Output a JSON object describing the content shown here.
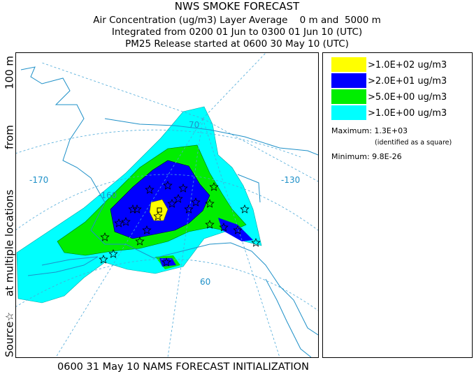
{
  "header": {
    "title": "NWS SMOKE FORECAST",
    "lines": [
      "Air Concentration (ug/m3) Layer Average    0 m and  5000 m",
      "Integrated from 0200 01 Jun to 0300 01 Jun 10 (UTC)",
      "PM25 Release started at 0600 30 May 10 (UTC)"
    ]
  },
  "side_label": [
    "Source☆",
    "at multiple locations",
    "from",
    "100 m"
  ],
  "legend": [
    {
      "label": ">1.0E+02 ug/m3",
      "color": "#ffff00"
    },
    {
      "label": ">2.0E+01 ug/m3",
      "color": "#0000ff"
    },
    {
      "label": ">5.0E+00 ug/m3",
      "color": "#00ee00"
    },
    {
      "label": ">1.0E+00 ug/m3",
      "color": "#00ffff"
    }
  ],
  "stats": {
    "maximum": "Maximum: 1.3E+03",
    "maximum_note": "(identified as a square)",
    "minimum": "Minimum: 9.8E-26"
  },
  "map_labels": [
    "-170",
    "-160",
    "-130",
    "70",
    "60"
  ],
  "footer": "0600 31 May 10 NAMS FORECAST INITIALIZATION"
}
